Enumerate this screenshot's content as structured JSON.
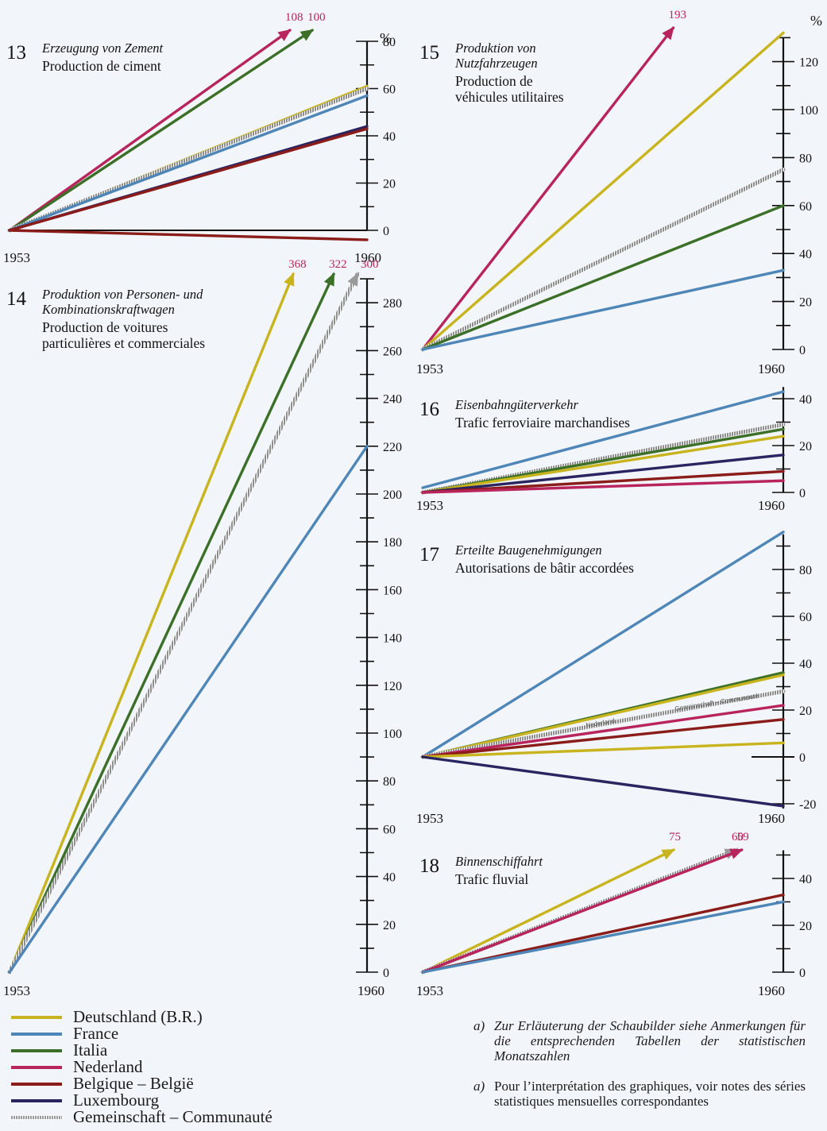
{
  "colors": {
    "Deutschland": "#c8b41e",
    "France": "#4f86b8",
    "Italia": "#3c7028",
    "Nederland": "#b8245c",
    "Belgique": "#8a1c1a",
    "Luxembourg": "#2a2460",
    "Gemeinschaft": "#9a9a9a",
    "axis": "#111111",
    "label_red": "#b8245c"
  },
  "legend": [
    {
      "key": "Deutschland",
      "label": "Deutschland (B.R.)"
    },
    {
      "key": "France",
      "label": "France"
    },
    {
      "key": "Italia",
      "label": "Italia"
    },
    {
      "key": "Nederland",
      "label": "Nederland"
    },
    {
      "key": "Belgique",
      "label": "Belgique – België"
    },
    {
      "key": "Luxembourg",
      "label": "Luxembourg"
    },
    {
      "key": "Gemeinschaft",
      "label": "Gemeinschaft – Communauté"
    }
  ],
  "notes": {
    "mark": "a)",
    "de": "Zur Erläuterung der Schaubilder siehe Anmerkungen für die entsprechenden Tabellen der statistischen Monatszahlen",
    "fr": "Pour l’interprétation des graphiques, voir notes des séries statistiques mensuelles correspondantes"
  },
  "chart_data": [
    {
      "id": "13",
      "type": "line",
      "title_de": "Erzeugung von Zement",
      "title_fr": "Production de ciment",
      "unit": "%",
      "x": [
        "1953",
        "1960"
      ],
      "ylim": [
        0,
        80
      ],
      "yticks": [
        0,
        20,
        40,
        60,
        80
      ],
      "series": [
        {
          "key": "Nederland",
          "values": [
            0,
            108
          ],
          "arrow_label": "108"
        },
        {
          "key": "Italia",
          "values": [
            0,
            100
          ],
          "arrow_label": "100"
        },
        {
          "key": "Deutschland",
          "values": [
            0,
            61
          ]
        },
        {
          "key": "Gemeinschaft",
          "values": [
            0,
            60
          ]
        },
        {
          "key": "France",
          "values": [
            0,
            57
          ]
        },
        {
          "key": "Luxembourg",
          "values": [
            0,
            44
          ]
        },
        {
          "key": "Belgique",
          "values": [
            0,
            43
          ]
        },
        {
          "key": "Belgique",
          "values": [
            0,
            -4
          ]
        }
      ]
    },
    {
      "id": "14",
      "type": "line",
      "title_de": "Produktion von Personen- und Kombinationskraftwagen",
      "title_fr": "Production de voitures particulières et commerciales",
      "unit": "",
      "x": [
        "1953",
        "1960"
      ],
      "ylim": [
        0,
        290
      ],
      "yticks": [
        0,
        20,
        40,
        60,
        80,
        100,
        120,
        140,
        160,
        180,
        200,
        220,
        240,
        260,
        280
      ],
      "series": [
        {
          "key": "Deutschland",
          "values": [
            0,
            368
          ],
          "arrow_label": "368"
        },
        {
          "key": "Italia",
          "values": [
            0,
            322
          ],
          "arrow_label": "322"
        },
        {
          "key": "Gemeinschaft",
          "values": [
            0,
            300
          ],
          "arrow_label": "300"
        },
        {
          "key": "France",
          "values": [
            0,
            220
          ]
        }
      ]
    },
    {
      "id": "15",
      "type": "line",
      "title_de": "Produktion von Nutzfahrzeugen",
      "title_fr": "Production de véhicules utilitaires",
      "unit": "%",
      "x": [
        "1953",
        "1960"
      ],
      "ylim": [
        0,
        130
      ],
      "yticks": [
        0,
        20,
        40,
        60,
        80,
        100,
        120
      ],
      "series": [
        {
          "key": "Nederland",
          "values": [
            0,
            193
          ],
          "arrow_label": "193"
        },
        {
          "key": "Deutschland",
          "values": [
            0,
            132
          ]
        },
        {
          "key": "Gemeinschaft",
          "values": [
            0,
            75
          ]
        },
        {
          "key": "Italia",
          "values": [
            0,
            60
          ]
        },
        {
          "key": "France",
          "values": [
            0,
            33
          ]
        }
      ]
    },
    {
      "id": "16",
      "type": "line",
      "title_de": "Eisenbahngüterverkehr",
      "title_fr": "Trafic ferroviaire marchandises",
      "unit": "",
      "x": [
        "1953",
        "1960"
      ],
      "ylim": [
        0,
        45
      ],
      "yticks": [
        0,
        20,
        40
      ],
      "series": [
        {
          "key": "France",
          "values": [
            2,
            43
          ]
        },
        {
          "key": "Gemeinschaft",
          "values": [
            0,
            29
          ]
        },
        {
          "key": "Italia",
          "values": [
            0,
            27
          ]
        },
        {
          "key": "Deutschland",
          "values": [
            0,
            24
          ]
        },
        {
          "key": "Luxembourg",
          "values": [
            0,
            16
          ]
        },
        {
          "key": "Belgique",
          "values": [
            0,
            9
          ]
        },
        {
          "key": "Nederland",
          "values": [
            0,
            5
          ]
        }
      ]
    },
    {
      "id": "17",
      "type": "line",
      "title_de": "Erteilte Baugenehmigungen",
      "title_fr": "Autorisations de bâtir accordées",
      "unit": "",
      "x": [
        "1953",
        "1960"
      ],
      "ylim": [
        -20,
        95
      ],
      "yticks": [
        -20,
        0,
        20,
        40,
        60,
        80
      ],
      "inline_labels": [
        "Nederland",
        "Gemeinschaft – Communauté"
      ],
      "series": [
        {
          "key": "France",
          "values": [
            0,
            96
          ]
        },
        {
          "key": "Italia",
          "values": [
            0,
            36
          ]
        },
        {
          "key": "Deutschland",
          "values": [
            0,
            35
          ]
        },
        {
          "key": "Gemeinschaft",
          "values": [
            0,
            28
          ]
        },
        {
          "key": "Nederland",
          "values": [
            0,
            22
          ]
        },
        {
          "key": "Belgique",
          "values": [
            0,
            16
          ]
        },
        {
          "key": "Deutschland",
          "values": [
            0,
            6
          ]
        },
        {
          "key": "Luxembourg",
          "values": [
            0,
            -21
          ]
        }
      ]
    },
    {
      "id": "18",
      "type": "line",
      "title_de": "Binnenschiffahrt",
      "title_fr": "Trafic fluvial",
      "unit": "",
      "x": [
        "1953",
        "1960"
      ],
      "ylim": [
        0,
        52
      ],
      "yticks": [
        0,
        20,
        40
      ],
      "series": [
        {
          "key": "Deutschland",
          "values": [
            0,
            75
          ],
          "arrow_label": "75"
        },
        {
          "key": "Gemeinschaft",
          "values": [
            0,
            60
          ],
          "arrow_label": "60"
        },
        {
          "key": "Nederland",
          "values": [
            0,
            59
          ],
          "arrow_label": "59"
        },
        {
          "key": "Belgique",
          "values": [
            0,
            33
          ]
        },
        {
          "key": "France",
          "values": [
            0,
            30
          ]
        }
      ]
    }
  ]
}
